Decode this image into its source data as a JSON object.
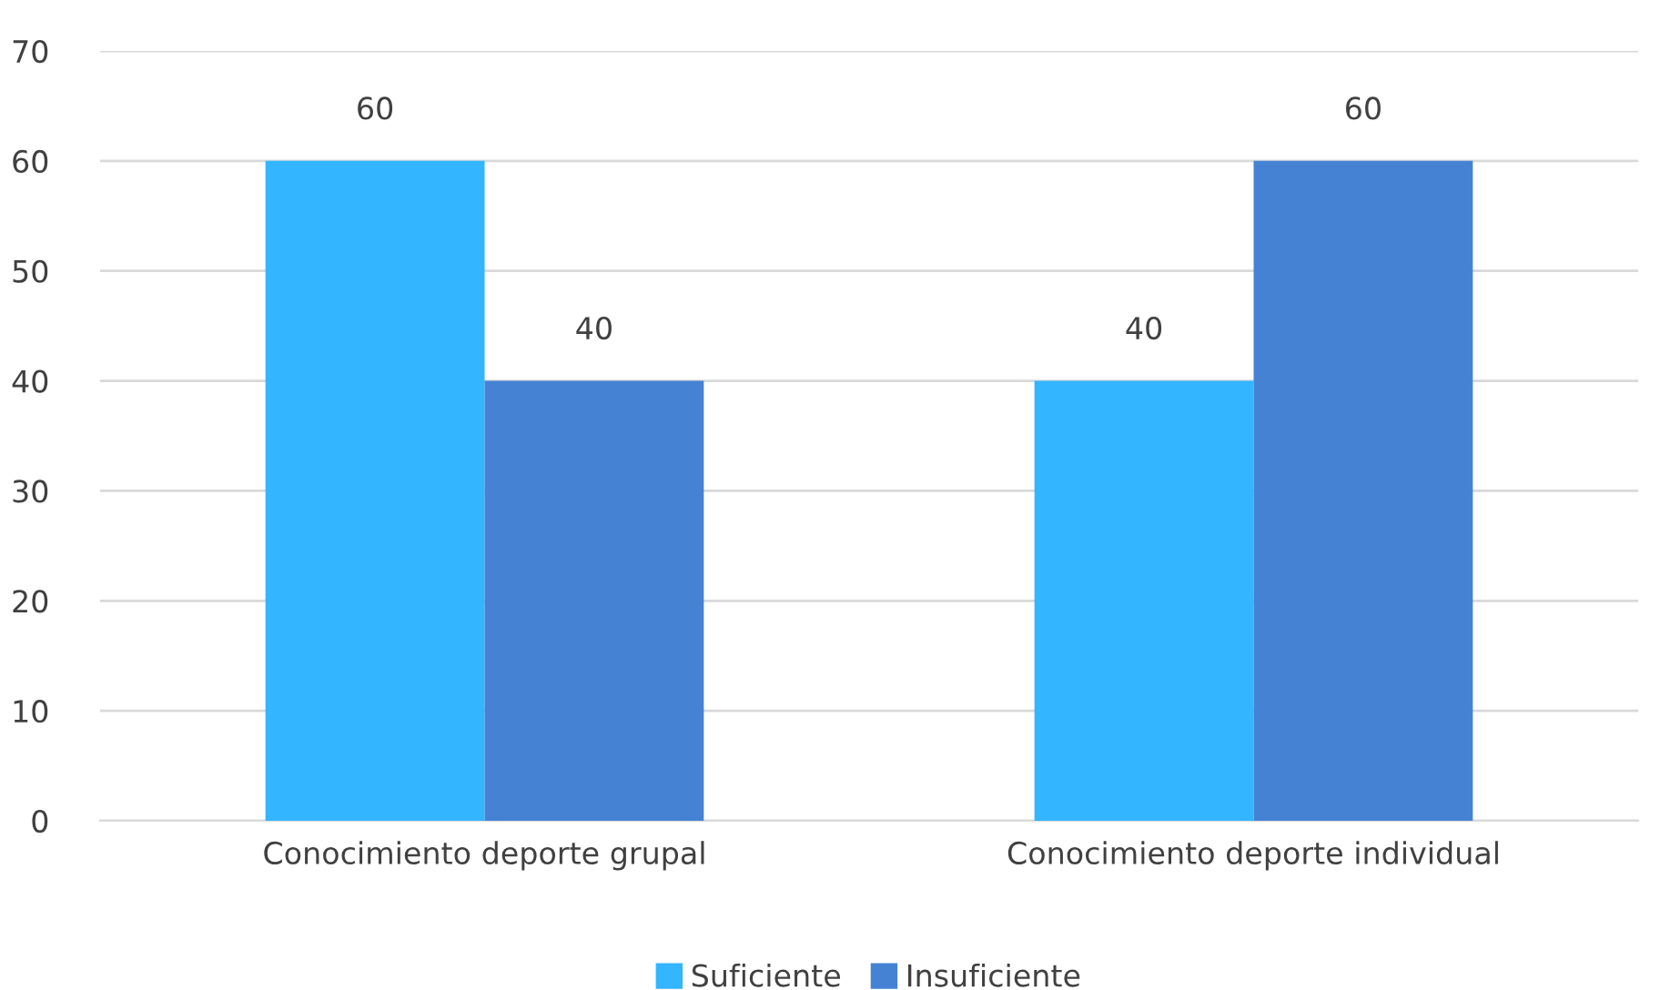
{
  "chart_data": {
    "type": "bar",
    "categories": [
      "Conocimiento deporte grupal",
      "Conocimiento deporte individual"
    ],
    "series": [
      {
        "name": "Suficiente",
        "color": "#33b5ff",
        "values": [
          60,
          40
        ]
      },
      {
        "name": "Insuficiente",
        "color": "#4582d4",
        "values": [
          40,
          60
        ]
      }
    ],
    "ylim": [
      0,
      70
    ],
    "yticks": [
      0,
      10,
      20,
      30,
      40,
      50,
      60,
      70
    ],
    "grid": "y",
    "legend": "bottom",
    "data_labels": true
  }
}
